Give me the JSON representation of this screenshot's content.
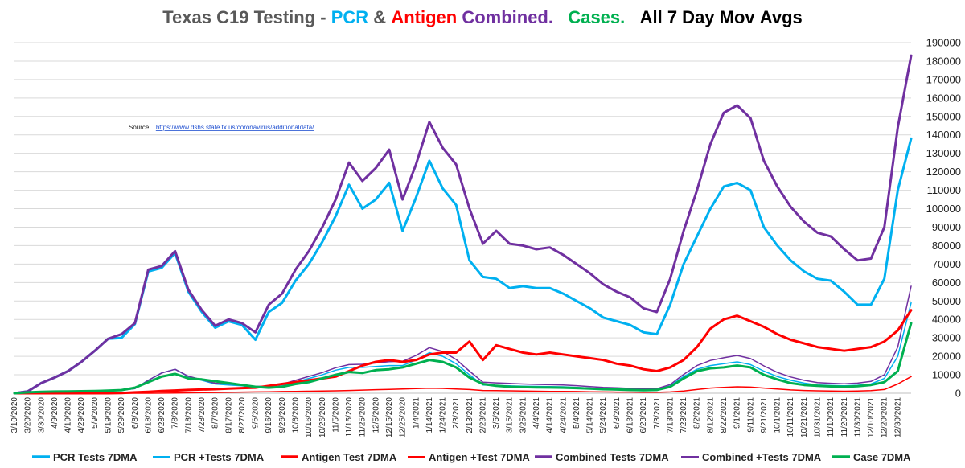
{
  "chart_data": {
    "type": "line",
    "title_segments": [
      {
        "text": "Texas C19 Testing - ",
        "color": "#595959"
      },
      {
        "text": "PCR",
        "color": "#00b0f0"
      },
      {
        "text": " & ",
        "color": "#595959"
      },
      {
        "text": "Antigen",
        "color": "#ff0000"
      },
      {
        "text": " Combined.",
        "color": "#7030a0"
      },
      {
        "text": "   Cases.",
        "color": "#00b050"
      },
      {
        "text": "   All 7 Day Mov Avgs",
        "color": "#000000"
      }
    ],
    "source_label": "Source:",
    "source_url": "https://www.dshs.state.tx.us/coronavirus/additionaldata/",
    "ylim": [
      0,
      190000
    ],
    "y_ticks": [
      "0",
      "10000",
      "20000",
      "30000",
      "40000",
      "50000",
      "60000",
      "70000",
      "80000",
      "90000",
      "100000",
      "110000",
      "120000",
      "130000",
      "140000",
      "150000",
      "160000",
      "170000",
      "180000",
      "190000"
    ],
    "x_tick_labels": [
      "3/10/2020",
      "3/20/2020",
      "3/30/2020",
      "4/9/2020",
      "4/19/2020",
      "4/29/2020",
      "5/9/2020",
      "5/19/2020",
      "5/29/2020",
      "6/8/2020",
      "6/18/2020",
      "6/28/2020",
      "7/8/2020",
      "7/18/2020",
      "7/28/2020",
      "8/7/2020",
      "8/17/2020",
      "8/27/2020",
      "9/6/2020",
      "9/16/2020",
      "9/26/2020",
      "10/6/2020",
      "10/16/2020",
      "10/26/2020",
      "11/5/2020",
      "11/15/2020",
      "11/25/2020",
      "12/5/2020",
      "12/15/2020",
      "12/25/2020",
      "1/4/2021",
      "1/14/2021",
      "1/24/2021",
      "2/3/2021",
      "2/13/2021",
      "2/23/2021",
      "3/5/2021",
      "3/15/2021",
      "3/25/2021",
      "4/4/2021",
      "4/14/2021",
      "4/24/2021",
      "5/4/2021",
      "5/14/2021",
      "5/24/2021",
      "6/3/2021",
      "6/13/2021",
      "6/23/2021",
      "7/3/2021",
      "7/13/2021",
      "7/23/2021",
      "8/2/2021",
      "8/12/2021",
      "8/22/2021",
      "9/1/2021",
      "9/11/2021",
      "9/21/2021",
      "10/1/2021",
      "10/11/2021",
      "10/21/2021",
      "10/31/2021",
      "11/10/2021",
      "11/20/2021",
      "11/30/2021",
      "12/10/2021",
      "12/20/2021",
      "12/30/2021"
    ],
    "grid": true,
    "legend_position": "bottom",
    "x": [
      "3/10/2020",
      "3/20/2020",
      "3/30/2020",
      "4/9/2020",
      "4/19/2020",
      "4/29/2020",
      "5/9/2020",
      "5/19/2020",
      "5/29/2020",
      "6/8/2020",
      "6/18/2020",
      "6/28/2020",
      "7/8/2020",
      "7/18/2020",
      "7/28/2020",
      "8/7/2020",
      "8/17/2020",
      "8/27/2020",
      "9/6/2020",
      "9/16/2020",
      "9/26/2020",
      "10/6/2020",
      "10/16/2020",
      "10/26/2020",
      "11/5/2020",
      "11/15/2020",
      "11/25/2020",
      "12/5/2020",
      "12/15/2020",
      "12/25/2020",
      "1/4/2021",
      "1/14/2021",
      "1/24/2021",
      "2/3/2021",
      "2/13/2021",
      "2/23/2021",
      "3/5/2021",
      "3/15/2021",
      "3/25/2021",
      "4/4/2021",
      "4/14/2021",
      "4/24/2021",
      "5/4/2021",
      "5/14/2021",
      "5/24/2021",
      "6/3/2021",
      "6/13/2021",
      "6/23/2021",
      "7/3/2021",
      "7/13/2021",
      "7/23/2021",
      "8/2/2021",
      "8/12/2021",
      "8/22/2021",
      "9/1/2021",
      "9/11/2021",
      "9/21/2021",
      "10/1/2021",
      "10/11/2021",
      "10/21/2021",
      "10/31/2021",
      "11/10/2021",
      "11/20/2021",
      "11/30/2021",
      "12/10/2021",
      "12/20/2021",
      "12/30/2021",
      "1/6/2022"
    ],
    "series": [
      {
        "name": "PCR Tests 7DMA",
        "color": "#00b0f0",
        "width": 3,
        "values": [
          0,
          1000,
          5500,
          8500,
          12000,
          17000,
          23000,
          29500,
          30000,
          37500,
          66000,
          68000,
          76000,
          55000,
          44000,
          35500,
          39000,
          37000,
          29000,
          44000,
          49000,
          61000,
          70000,
          82000,
          96000,
          113000,
          100000,
          105000,
          114000,
          88000,
          106000,
          126000,
          111000,
          102000,
          72000,
          63000,
          62000,
          57000,
          58000,
          57000,
          57000,
          54000,
          50000,
          46000,
          41000,
          39000,
          37000,
          33000,
          32000,
          48000,
          70000,
          85000,
          100000,
          112000,
          114000,
          110000,
          90000,
          80000,
          72000,
          66000,
          62000,
          61000,
          55000,
          48000,
          48000,
          62000,
          110000,
          138000
        ]
      },
      {
        "name": "PCR +Tests 7DMA",
        "color": "#00b0f0",
        "width": 1.5,
        "values": [
          0,
          100,
          300,
          600,
          900,
          1100,
          1200,
          1400,
          1600,
          2500,
          7000,
          11000,
          13000,
          9000,
          7000,
          5000,
          4500,
          4000,
          3000,
          3000,
          4000,
          6000,
          8000,
          10000,
          12500,
          14000,
          14000,
          14500,
          15000,
          15000,
          18000,
          22000,
          20000,
          16000,
          10000,
          4500,
          4200,
          4000,
          3800,
          3700,
          3600,
          3500,
          3200,
          2800,
          2500,
          2300,
          2000,
          1800,
          2000,
          4000,
          9000,
          13000,
          15000,
          16000,
          17000,
          15500,
          12000,
          9000,
          7000,
          5500,
          4500,
          4200,
          4000,
          4300,
          5000,
          8000,
          20000,
          49000
        ]
      },
      {
        "name": "Antigen Test 7DMA",
        "color": "#ff0000",
        "width": 3,
        "values": [
          0,
          0,
          0,
          0,
          0,
          0,
          0,
          0,
          100,
          500,
          800,
          1200,
          1500,
          1800,
          2000,
          2200,
          2500,
          2800,
          3000,
          4000,
          5000,
          6000,
          7000,
          8000,
          9000,
          12000,
          15000,
          17000,
          18000,
          17000,
          18000,
          21000,
          22000,
          22000,
          28000,
          18000,
          26000,
          24000,
          22000,
          21000,
          22000,
          21000,
          20000,
          19000,
          18000,
          16000,
          15000,
          13000,
          12000,
          14000,
          18000,
          25000,
          35000,
          40000,
          42000,
          39000,
          36000,
          32000,
          29000,
          27000,
          25000,
          24000,
          23000,
          24000,
          25000,
          28000,
          34000,
          45000
        ]
      },
      {
        "name": "Antigen +Test 7DMA",
        "color": "#ff0000",
        "width": 1.5,
        "values": [
          0,
          0,
          0,
          0,
          0,
          0,
          0,
          0,
          0,
          0,
          0,
          50,
          100,
          200,
          300,
          400,
          500,
          600,
          700,
          800,
          900,
          1000,
          1100,
          1200,
          1300,
          1500,
          1700,
          1900,
          2100,
          2300,
          2500,
          2700,
          2600,
          2300,
          2000,
          1500,
          1400,
          1300,
          1200,
          1100,
          1000,
          1000,
          900,
          800,
          700,
          600,
          600,
          500,
          500,
          700,
          1200,
          2000,
          2800,
          3200,
          3500,
          3300,
          2800,
          2300,
          1800,
          1500,
          1300,
          1200,
          1100,
          1200,
          1400,
          2000,
          5000,
          9000
        ]
      },
      {
        "name": "Combined Tests 7DMA",
        "color": "#7030a0",
        "width": 3,
        "values": [
          0,
          1000,
          5500,
          8500,
          12000,
          17000,
          23000,
          29500,
          32000,
          38000,
          67000,
          69000,
          77000,
          56000,
          45000,
          36500,
          40000,
          38000,
          33000,
          48000,
          54000,
          67000,
          77000,
          90000,
          105000,
          125000,
          115000,
          122000,
          132000,
          105000,
          124000,
          147000,
          133000,
          124000,
          100000,
          81000,
          88000,
          81000,
          80000,
          78000,
          79000,
          75000,
          70000,
          65000,
          59000,
          55000,
          52000,
          46000,
          44000,
          62000,
          88000,
          110000,
          135000,
          152000,
          156000,
          149000,
          126000,
          112000,
          101000,
          93000,
          87000,
          85000,
          78000,
          72000,
          73000,
          90000,
          144000,
          183000
        ]
      },
      {
        "name": "Combined +Tests 7DMA",
        "color": "#7030a0",
        "width": 1.5,
        "values": [
          0,
          100,
          300,
          600,
          900,
          1100,
          1200,
          1400,
          1600,
          2500,
          7000,
          11000,
          13000,
          9200,
          7300,
          5400,
          5000,
          4600,
          3700,
          3800,
          4900,
          7000,
          9100,
          11200,
          13800,
          15500,
          15700,
          16400,
          17100,
          17300,
          20500,
          24700,
          22600,
          18300,
          12000,
          6000,
          5600,
          5300,
          5000,
          4800,
          4600,
          4500,
          4100,
          3600,
          3200,
          2900,
          2600,
          2300,
          2500,
          4700,
          10200,
          15000,
          17800,
          19200,
          20500,
          18800,
          14800,
          11300,
          8800,
          7000,
          5800,
          5400,
          5100,
          5500,
          6400,
          10000,
          25000,
          58000
        ]
      },
      {
        "name": "Case 7DMA",
        "color": "#00b050",
        "width": 3,
        "values": [
          0,
          500,
          800,
          900,
          1000,
          1100,
          1200,
          1400,
          1700,
          3000,
          6000,
          9000,
          10500,
          8000,
          7500,
          6500,
          5500,
          4500,
          3500,
          3000,
          3500,
          5000,
          6000,
          8000,
          10000,
          11500,
          11000,
          12500,
          13000,
          14000,
          16000,
          18000,
          17000,
          14000,
          8500,
          5000,
          4000,
          3500,
          3300,
          3200,
          3100,
          3000,
          2800,
          2500,
          2200,
          2000,
          1800,
          1600,
          1800,
          3500,
          8000,
          12000,
          13500,
          14000,
          15000,
          14000,
          10000,
          7500,
          5500,
          4500,
          4000,
          3700,
          3500,
          3800,
          4500,
          6000,
          12000,
          38000
        ]
      }
    ]
  }
}
